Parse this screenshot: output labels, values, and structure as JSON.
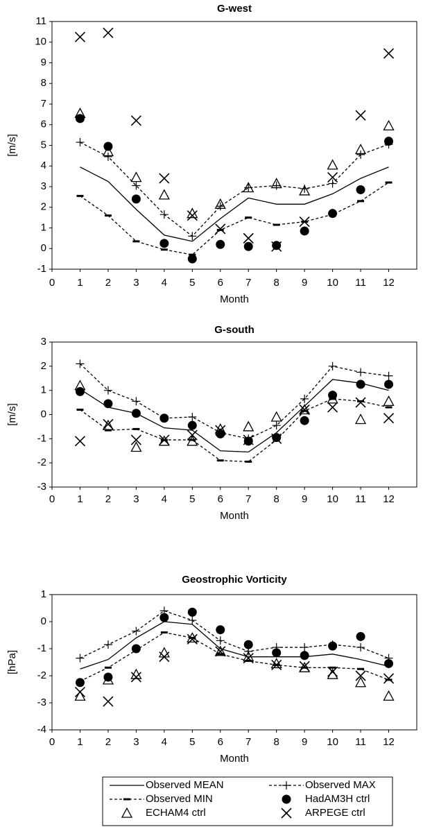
{
  "chart_data": [
    {
      "type": "line",
      "title": "G-west",
      "xlabel": "Month",
      "ylabel": "[m/s]",
      "x": [
        1,
        2,
        3,
        4,
        5,
        6,
        7,
        8,
        9,
        10,
        11,
        12
      ],
      "xlim": [
        0,
        13
      ],
      "xticks": [
        0,
        1,
        2,
        3,
        4,
        5,
        6,
        7,
        8,
        9,
        10,
        11,
        12
      ],
      "ylim": [
        -1,
        11
      ],
      "yticks": [
        -1,
        0,
        1,
        2,
        3,
        4,
        5,
        6,
        7,
        8,
        9,
        10,
        11
      ],
      "series": [
        {
          "name": "Observed MEAN",
          "color": "#000000",
          "line": "solid",
          "marker": null,
          "values": [
            3.95,
            3.25,
            1.9,
            0.65,
            0.35,
            1.45,
            2.45,
            2.15,
            2.15,
            2.65,
            3.4,
            3.95
          ]
        },
        {
          "name": "Observed  MAX",
          "color": "#000000",
          "line": "dashed",
          "marker": "plus",
          "values": [
            5.15,
            4.45,
            3.05,
            1.65,
            0.6,
            2.05,
            2.95,
            3.05,
            2.9,
            3.15,
            4.55,
            5.05
          ]
        },
        {
          "name": "Observed  MIN",
          "color": "#000000",
          "line": "dashed",
          "marker": "dash",
          "values": [
            2.55,
            1.6,
            0.35,
            -0.05,
            -0.3,
            0.9,
            1.5,
            1.15,
            1.3,
            1.65,
            2.3,
            3.2
          ]
        },
        {
          "name": "HadAM3H ctrl",
          "color": "#000000",
          "line": null,
          "marker": "circle",
          "values": [
            6.3,
            4.95,
            2.4,
            0.25,
            -0.5,
            0.2,
            0.1,
            0.15,
            0.85,
            1.7,
            2.85,
            5.2
          ]
        },
        {
          "name": "ECHAM4   ctrl",
          "color": "#000000",
          "line": null,
          "marker": "triangle",
          "values": [
            6.55,
            4.7,
            3.45,
            2.6,
            1.7,
            2.15,
            2.95,
            3.15,
            2.8,
            4.05,
            4.8,
            5.95
          ]
        },
        {
          "name": "ARPEGE   ctrl",
          "color": "#000000",
          "line": null,
          "marker": "x",
          "values": [
            10.25,
            10.45,
            6.2,
            3.4,
            1.6,
            0.95,
            0.5,
            0.1,
            1.3,
            3.45,
            6.45,
            9.45
          ]
        }
      ]
    },
    {
      "type": "line",
      "title": "G-south",
      "xlabel": "Month",
      "ylabel": "[m/s]",
      "x": [
        1,
        2,
        3,
        4,
        5,
        6,
        7,
        8,
        9,
        10,
        11,
        12
      ],
      "xlim": [
        0,
        13
      ],
      "xticks": [
        0,
        1,
        2,
        3,
        4,
        5,
        6,
        7,
        8,
        9,
        10,
        11,
        12
      ],
      "ylim": [
        -3,
        3
      ],
      "yticks": [
        -3,
        -2,
        -1,
        0,
        1,
        2,
        3
      ],
      "series": [
        {
          "color": "#000000",
          "line": "solid",
          "marker": null,
          "values": [
            1.05,
            0.3,
            0.05,
            -0.55,
            -0.65,
            -1.5,
            -1.55,
            -0.75,
            0.35,
            1.45,
            1.3,
            1.0
          ]
        },
        {
          "color": "#000000",
          "line": "dashed",
          "marker": "plus",
          "values": [
            2.1,
            1.0,
            0.55,
            -0.15,
            -0.1,
            -0.75,
            -1.0,
            -0.45,
            0.65,
            2.0,
            1.75,
            1.6
          ]
        },
        {
          "color": "#000000",
          "line": "dashed",
          "marker": "dash",
          "values": [
            0.2,
            -0.65,
            -0.6,
            -1.05,
            -1.05,
            -1.9,
            -1.95,
            -1.05,
            0.15,
            0.65,
            0.55,
            0.3
          ]
        },
        {
          "color": "#000000",
          "line": null,
          "marker": "circle",
          "values": [
            0.95,
            0.45,
            0.05,
            -0.15,
            -0.45,
            -0.8,
            -1.1,
            -0.95,
            -0.25,
            0.8,
            1.25,
            1.25
          ]
        },
        {
          "color": "#000000",
          "line": null,
          "marker": "triangle",
          "values": [
            1.2,
            -0.45,
            -1.35,
            -1.1,
            -1.1,
            -0.6,
            -0.5,
            -0.1,
            0.2,
            0.65,
            -0.2,
            0.55
          ]
        },
        {
          "color": "#000000",
          "line": null,
          "marker": "x",
          "values": [
            -1.1,
            -0.4,
            -1.05,
            -1.05,
            -0.85,
            -0.65,
            -1.05,
            -1.0,
            0.2,
            0.3,
            0.5,
            -0.15
          ]
        }
      ]
    },
    {
      "type": "line",
      "title": "Geostrophic Vorticity",
      "xlabel": "Month",
      "ylabel": "[hPa]",
      "x": [
        1,
        2,
        3,
        4,
        5,
        6,
        7,
        8,
        9,
        10,
        11,
        12
      ],
      "xlim": [
        0,
        13
      ],
      "xticks": [
        0,
        1,
        2,
        3,
        4,
        5,
        6,
        7,
        8,
        9,
        10,
        11,
        12
      ],
      "ylim": [
        -4,
        1
      ],
      "yticks": [
        -4,
        -3,
        -2,
        -1,
        0,
        1
      ],
      "series": [
        {
          "color": "#000000",
          "line": "solid",
          "marker": null,
          "values": [
            -1.75,
            -1.4,
            -0.6,
            0.0,
            -0.1,
            -1.0,
            -1.3,
            -1.3,
            -1.3,
            -1.2,
            -1.4,
            -1.65
          ]
        },
        {
          "color": "#000000",
          "line": "dashed",
          "marker": "plus",
          "values": [
            -1.35,
            -0.85,
            -0.35,
            0.4,
            0.05,
            -0.7,
            -1.1,
            -0.95,
            -0.95,
            -0.85,
            -0.95,
            -1.35
          ]
        },
        {
          "color": "#000000",
          "line": "dashed",
          "marker": "dash",
          "values": [
            -2.2,
            -1.7,
            -1.05,
            -0.4,
            -0.6,
            -1.2,
            -1.45,
            -1.6,
            -1.7,
            -1.7,
            -1.75,
            -2.15
          ]
        },
        {
          "color": "#000000",
          "line": null,
          "marker": "circle",
          "values": [
            -2.25,
            -2.05,
            -1.0,
            0.15,
            0.35,
            -0.3,
            -0.85,
            -1.15,
            -1.25,
            -0.9,
            -0.55,
            -1.55
          ]
        },
        {
          "color": "#000000",
          "line": null,
          "marker": "triangle",
          "values": [
            -2.75,
            -2.15,
            -1.95,
            -1.15,
            -0.6,
            -1.1,
            -1.3,
            -1.55,
            -1.7,
            -1.95,
            -2.25,
            -2.75
          ]
        },
        {
          "color": "#000000",
          "line": null,
          "marker": "x",
          "values": [
            -2.6,
            -2.95,
            -2.05,
            -1.3,
            -0.65,
            -1.1,
            -1.35,
            -1.6,
            -1.65,
            -1.85,
            -2.0,
            -2.1
          ]
        }
      ]
    }
  ]
}
